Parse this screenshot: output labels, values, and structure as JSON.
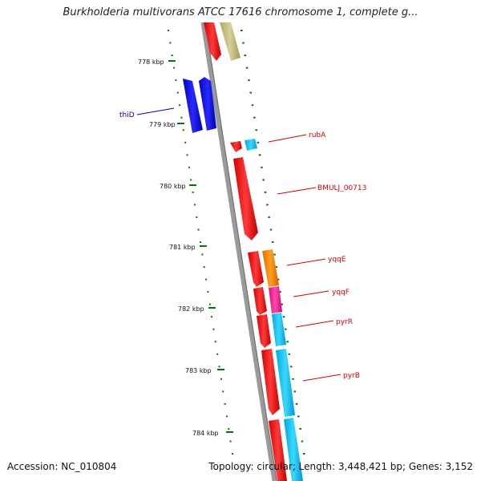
{
  "header": {
    "title": "Burkholderia multivorans ATCC 17616 chromosome 1, complete g..."
  },
  "footer": {
    "accession": "Accession: NC_010804",
    "stats": "Topology: circular; Length: 3,448,421 bp; Genes: 3,152"
  },
  "ticks": [
    "778 kbp",
    "779 kbp",
    "780 kbp",
    "781 kbp",
    "782 kbp",
    "783 kbp",
    "784 kbp"
  ],
  "genes": [
    {
      "label": "thiD",
      "color": "#0000ff"
    },
    {
      "label": "rubA",
      "color": "#ff0000"
    },
    {
      "label": "BMULJ_00713",
      "color": "#ff0000"
    },
    {
      "label": "yqqE",
      "color": "#ff0000"
    },
    {
      "label": "yqqF",
      "color": "#ff0000"
    },
    {
      "label": "pyrR",
      "color": "#ff0000"
    },
    {
      "label": "pyrB",
      "color": "#ff0000"
    }
  ],
  "colors": {
    "backbone": "#8a8a8a",
    "tick": "#007700",
    "forward_strand": "#ff0000",
    "reverse_strand": "#0000ff",
    "tan": "#c8bf80",
    "cyan": "#16c5f0",
    "orange": "#ff8800",
    "magenta": "#ff2a9a"
  }
}
